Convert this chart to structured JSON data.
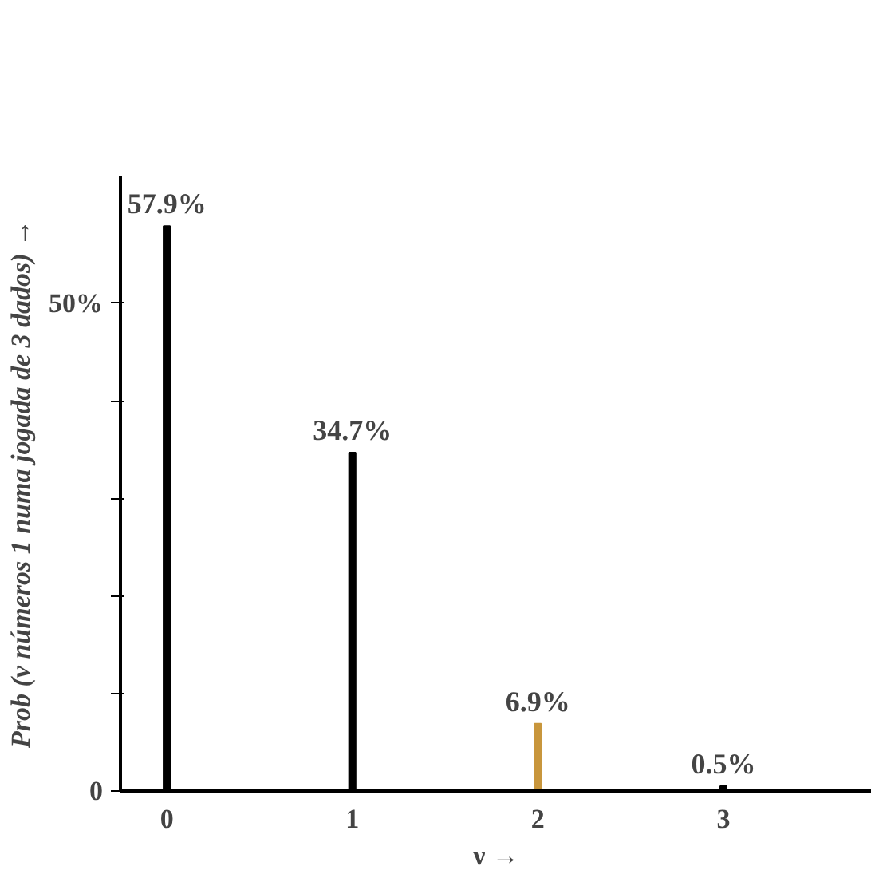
{
  "chart_data": {
    "type": "bar",
    "xlabel": "ν →",
    "ylabel": "Prob (ν números 1 numa jogada de 3 dados) →",
    "x": [
      0,
      1,
      2,
      3
    ],
    "values": [
      57.9,
      34.7,
      6.9,
      0.5
    ],
    "colors": [
      "#000000",
      "#000000",
      "#c8963c",
      "#000000"
    ],
    "value_labels": [
      "57.9%",
      "34.7%",
      "6.9%",
      "0.5%"
    ],
    "xlim": [
      -0.25,
      3.8
    ],
    "xticks": [
      0,
      1,
      2,
      3
    ],
    "ylim": [
      0,
      63
    ],
    "yticks": [
      0,
      {
        "value": 10,
        "label": null
      },
      {
        "value": 20,
        "label": null
      },
      {
        "value": 30,
        "label": null
      },
      {
        "value": 40,
        "label": null
      },
      {
        "value": 50,
        "label": "50%"
      }
    ],
    "grid": false
  }
}
